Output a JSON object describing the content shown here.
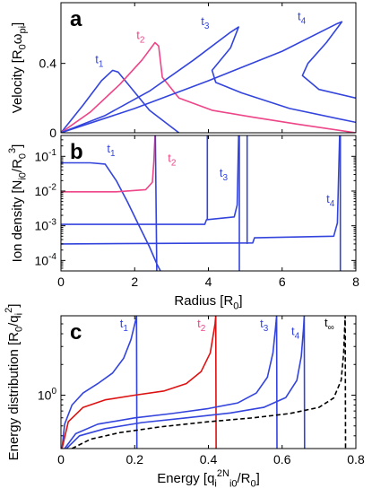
{
  "chart_data": [
    {
      "panel": "a",
      "type": "line",
      "xlim": [
        0,
        8
      ],
      "ylim": [
        0,
        0.75
      ],
      "ylabel": "Velocity [R_0ω_pi]",
      "xticks": [
        0,
        2,
        4,
        6,
        8
      ],
      "yticks": [
        {
          "v": 0,
          "t": "0"
        },
        {
          "v": 0.4,
          "t": "0.4"
        }
      ],
      "series": [
        {
          "name": "t1",
          "color": "#3344dd",
          "points": [
            [
              0,
              0
            ],
            [
              0.6,
              0.16
            ],
            [
              1.1,
              0.3
            ],
            [
              1.4,
              0.36
            ],
            [
              1.55,
              0.35
            ],
            [
              1.9,
              0.26
            ],
            [
              2.4,
              0.13
            ],
            [
              3.2,
              0.0
            ]
          ]
        },
        {
          "name": "t2",
          "color": "#ee4488",
          "points": [
            [
              0,
              0
            ],
            [
              0.8,
              0.12
            ],
            [
              1.6,
              0.28
            ],
            [
              2.2,
              0.42
            ],
            [
              2.55,
              0.52
            ],
            [
              2.65,
              0.5
            ],
            [
              2.75,
              0.32
            ],
            [
              3.2,
              0.2
            ],
            [
              4.1,
              0.13
            ],
            [
              5.2,
              0.09
            ],
            [
              6.4,
              0.05
            ],
            [
              8,
              0.0
            ]
          ]
        },
        {
          "name": "t3",
          "color": "#3344dd",
          "points": [
            [
              0,
              0
            ],
            [
              1.2,
              0.1
            ],
            [
              2.4,
              0.24
            ],
            [
              3.6,
              0.42
            ],
            [
              4.6,
              0.58
            ],
            [
              4.82,
              0.61
            ],
            [
              4.6,
              0.49
            ],
            [
              4.1,
              0.36
            ],
            [
              4.2,
              0.29
            ],
            [
              4.9,
              0.23
            ],
            [
              6.2,
              0.14
            ],
            [
              8,
              0.06
            ]
          ]
        },
        {
          "name": "t4",
          "color": "#3344dd",
          "points": [
            [
              0,
              0
            ],
            [
              2,
              0.14
            ],
            [
              4,
              0.3
            ],
            [
              6,
              0.47
            ],
            [
              7.5,
              0.63
            ],
            [
              7.62,
              0.64
            ],
            [
              7.2,
              0.52
            ],
            [
              6.7,
              0.4
            ],
            [
              6.55,
              0.33
            ],
            [
              7.0,
              0.25
            ],
            [
              8,
              0.2
            ]
          ]
        }
      ],
      "annotations": [
        {
          "text": "t1",
          "x": 0.93,
          "y": 0.4,
          "color": "#3344dd"
        },
        {
          "text": "t2",
          "x": 2.05,
          "y": 0.54,
          "color": "#ee4488"
        },
        {
          "text": "t3",
          "x": 3.8,
          "y": 0.62,
          "color": "#3344dd"
        },
        {
          "text": "t4",
          "x": 6.42,
          "y": 0.65,
          "color": "#3344dd"
        }
      ]
    },
    {
      "panel": "b",
      "type": "line",
      "yscale": "log",
      "xlim": [
        0,
        8
      ],
      "ylim": [
        5e-05,
        0.4
      ],
      "xlabel": "Radius [R_0]",
      "ylabel": "Ion density [N_i0/R_0^3]",
      "xticks": [
        0,
        2,
        4,
        6,
        8
      ],
      "yticks": [
        {
          "v": 0.1,
          "t": "10^-1"
        },
        {
          "v": 0.01,
          "t": "10^-2"
        },
        {
          "v": 0.001,
          "t": "10^-3"
        },
        {
          "v": 0.0001,
          "t": "10^-4"
        }
      ],
      "series": [
        {
          "name": "t1",
          "color": "#3344dd",
          "points": [
            [
              0,
              0.065
            ],
            [
              0.8,
              0.065
            ],
            [
              1.2,
              0.06
            ],
            [
              1.5,
              0.02
            ],
            [
              1.8,
              0.005
            ],
            [
              2.1,
              0.0011
            ],
            [
              2.4,
              0.00025
            ],
            [
              2.6,
              8e-05
            ],
            [
              2.7,
              5e-05
            ]
          ]
        },
        {
          "name": "t2",
          "color": "#ee4488",
          "points": [
            [
              0,
              0.0095
            ],
            [
              1.5,
              0.0095
            ],
            [
              2.3,
              0.011
            ],
            [
              2.48,
              0.018
            ],
            [
              2.52,
              0.07
            ],
            [
              2.55,
              0.4
            ]
          ]
        },
        {
          "name": "t2-tail",
          "color": "#3344dd",
          "points": [
            [
              2.56,
              0.4
            ],
            [
              2.6,
              5e-05
            ]
          ]
        },
        {
          "name": "t3",
          "color": "#3344dd",
          "points": [
            [
              0,
              0.0011
            ],
            [
              3.9,
              0.0011
            ],
            [
              3.95,
              0.0015
            ],
            [
              4.7,
              0.0018
            ],
            [
              4.78,
              0.004
            ],
            [
              4.82,
              0.4
            ]
          ]
        },
        {
          "name": "t3-tail",
          "color": "#3344dd",
          "points": [
            [
              3.97,
              0.4
            ],
            [
              3.97,
              0.0015
            ]
          ]
        },
        {
          "name": "t3-tail2",
          "color": "#3344dd",
          "points": [
            [
              4.84,
              0.4
            ],
            [
              4.84,
              5e-05
            ]
          ]
        },
        {
          "name": "t4",
          "color": "#3344dd",
          "points": [
            [
              0,
              0.0003
            ],
            [
              5.2,
              0.00032
            ],
            [
              5.25,
              0.00045
            ],
            [
              7.4,
              0.0005
            ],
            [
              7.5,
              0.0012
            ],
            [
              7.56,
              0.4
            ]
          ]
        },
        {
          "name": "t4-tail",
          "color": "#3344dd",
          "points": [
            [
              5.05,
              0.4
            ],
            [
              5.05,
              0.0003
            ]
          ]
        },
        {
          "name": "t4-tail2",
          "color": "#3344dd",
          "points": [
            [
              7.58,
              0.4
            ],
            [
              7.58,
              5e-05
            ]
          ]
        }
      ],
      "annotations": [
        {
          "text": "t1",
          "x": 1.25,
          "y": 0.13,
          "color": "#3344dd"
        },
        {
          "text": "t2",
          "x": 2.9,
          "y": 0.07,
          "color": "#ee4488"
        },
        {
          "text": "t3",
          "x": 4.3,
          "y": 0.026,
          "color": "#3344dd"
        },
        {
          "text": "t4",
          "x": 7.2,
          "y": 0.0046,
          "color": "#3344dd"
        }
      ]
    },
    {
      "panel": "c",
      "type": "line",
      "yscale": "log",
      "xlim": [
        0,
        0.8
      ],
      "ylim": [
        0.3,
        6
      ],
      "xlabel": "Energy [q_i^2N_i0/R_0]",
      "ylabel": "Energy distribution [R_0/q_i^2]",
      "xticks": [
        {
          "v": 0,
          "t": "0"
        },
        {
          "v": 0.2,
          "t": "0.2"
        },
        {
          "v": 0.4,
          "t": "0.4"
        },
        {
          "v": 0.6,
          "t": "0.6"
        },
        {
          "v": 0.8,
          "t": "0.8"
        }
      ],
      "yticks": [
        {
          "v": 1,
          "t": "10^0"
        }
      ],
      "series": [
        {
          "name": "t1",
          "color": "#3344dd",
          "points": [
            [
              0.003,
              0.3
            ],
            [
              0.01,
              0.52
            ],
            [
              0.03,
              0.8
            ],
            [
              0.06,
              1.05
            ],
            [
              0.1,
              1.3
            ],
            [
              0.14,
              1.65
            ],
            [
              0.17,
              2.3
            ],
            [
              0.19,
              3.5
            ],
            [
              0.203,
              5.5
            ],
            [
              0.205,
              6
            ],
            [
              0.206,
              0.3
            ]
          ]
        },
        {
          "name": "t2",
          "color": "#dd1111",
          "points": [
            [
              0.003,
              0.3
            ],
            [
              0.02,
              0.55
            ],
            [
              0.06,
              0.76
            ],
            [
              0.12,
              0.9
            ],
            [
              0.2,
              1.0
            ],
            [
              0.28,
              1.1
            ],
            [
              0.34,
              1.3
            ],
            [
              0.38,
              1.7
            ],
            [
              0.405,
              2.6
            ],
            [
              0.418,
              5
            ],
            [
              0.42,
              6
            ],
            [
              0.421,
              0.3
            ]
          ]
        },
        {
          "name": "t3",
          "color": "#3344dd",
          "points": [
            [
              0.01,
              0.3
            ],
            [
              0.04,
              0.42
            ],
            [
              0.1,
              0.52
            ],
            [
              0.2,
              0.6
            ],
            [
              0.3,
              0.66
            ],
            [
              0.4,
              0.74
            ],
            [
              0.48,
              0.84
            ],
            [
              0.53,
              1.05
            ],
            [
              0.56,
              1.5
            ],
            [
              0.575,
              2.6
            ],
            [
              0.582,
              4.5
            ],
            [
              0.585,
              6
            ],
            [
              0.586,
              0.3
            ]
          ]
        },
        {
          "name": "t4",
          "color": "#3344dd",
          "points": [
            [
              0.015,
              0.3
            ],
            [
              0.05,
              0.4
            ],
            [
              0.12,
              0.47
            ],
            [
              0.22,
              0.54
            ],
            [
              0.34,
              0.6
            ],
            [
              0.46,
              0.67
            ],
            [
              0.55,
              0.76
            ],
            [
              0.61,
              0.95
            ],
            [
              0.64,
              1.4
            ],
            [
              0.652,
              2.4
            ],
            [
              0.658,
              4.5
            ],
            [
              0.66,
              6
            ],
            [
              0.661,
              0.3
            ]
          ]
        },
        {
          "name": "t_inf",
          "color": "#000000",
          "dashed": true,
          "points": [
            [
              0.03,
              0.3
            ],
            [
              0.08,
              0.37
            ],
            [
              0.16,
              0.43
            ],
            [
              0.27,
              0.49
            ],
            [
              0.4,
              0.55
            ],
            [
              0.52,
              0.6
            ],
            [
              0.62,
              0.66
            ],
            [
              0.7,
              0.76
            ],
            [
              0.74,
              0.94
            ],
            [
              0.76,
              1.4
            ],
            [
              0.767,
              2.6
            ],
            [
              0.77,
              5
            ],
            [
              0.771,
              6
            ],
            [
              0.772,
              0.3
            ]
          ]
        }
      ],
      "annotations": [
        {
          "text": "t1",
          "x": 0.16,
          "y": 4.6,
          "color": "#3344dd"
        },
        {
          "text": "t2",
          "x": 0.37,
          "y": 4.6,
          "color": "#ee4488"
        },
        {
          "text": "t3",
          "x": 0.54,
          "y": 4.6,
          "color": "#3344dd"
        },
        {
          "text": "t4",
          "x": 0.625,
          "y": 3.9,
          "color": "#3344dd"
        },
        {
          "text": "t∞",
          "x": 0.715,
          "y": 4.7,
          "color": "#000000"
        }
      ]
    }
  ],
  "panel_labels": [
    "a",
    "b",
    "c"
  ]
}
